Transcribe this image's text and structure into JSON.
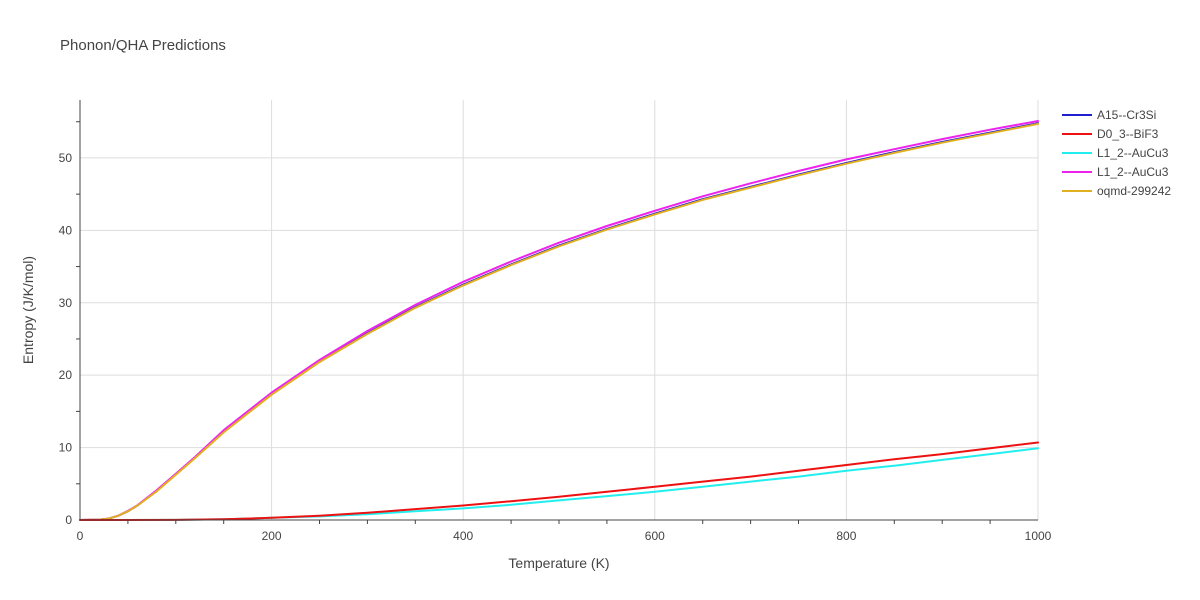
{
  "chart_data": {
    "type": "line",
    "title": "Phonon/QHA Predictions",
    "xlabel": "Temperature (K)",
    "ylabel": "Entropy (J/K/mol)",
    "xlim": [
      0,
      1000
    ],
    "ylim": [
      0,
      58
    ],
    "xticks": [
      0,
      200,
      400,
      600,
      800,
      1000
    ],
    "yticks": [
      0,
      10,
      20,
      30,
      40,
      50
    ],
    "grid": true,
    "legend_position": "right",
    "series": [
      {
        "name": "A15--Cr3Si",
        "color": "#1f1fd0",
        "x": [
          0,
          20,
          30,
          40,
          50,
          60,
          80,
          100,
          120,
          150,
          200,
          250,
          300,
          350,
          400,
          450,
          500,
          550,
          600,
          650,
          700,
          750,
          800,
          850,
          900,
          950,
          1000
        ],
        "y": [
          0,
          0.05,
          0.2,
          0.6,
          1.2,
          2.0,
          4.0,
          6.3,
          8.6,
          12.2,
          17.4,
          21.9,
          25.8,
          29.4,
          32.5,
          35.3,
          37.9,
          40.2,
          42.3,
          44.3,
          46.0,
          47.7,
          49.3,
          50.8,
          52.2,
          53.5,
          54.8
        ]
      },
      {
        "name": "D0_3--BiF3",
        "color": "#ee1111",
        "x": [
          0,
          100,
          150,
          200,
          250,
          300,
          350,
          400,
          450,
          500,
          550,
          600,
          650,
          700,
          750,
          800,
          850,
          900,
          950,
          1000
        ],
        "y": [
          0,
          0.02,
          0.1,
          0.3,
          0.6,
          1.0,
          1.5,
          2.0,
          2.6,
          3.2,
          3.9,
          4.6,
          5.3,
          6.0,
          6.8,
          7.6,
          8.4,
          9.1,
          9.9,
          10.7
        ]
      },
      {
        "name": "L1_2--AuCu3",
        "color": "#22eeee",
        "x": [
          0,
          100,
          150,
          200,
          250,
          300,
          350,
          400,
          450,
          500,
          550,
          600,
          650,
          700,
          750,
          800,
          850,
          900,
          950,
          1000
        ],
        "y": [
          0,
          0.02,
          0.1,
          0.3,
          0.5,
          0.8,
          1.2,
          1.6,
          2.1,
          2.7,
          3.3,
          3.9,
          4.6,
          5.3,
          6.0,
          6.8,
          7.5,
          8.3,
          9.1,
          9.9
        ]
      },
      {
        "name": "L1_2--AuCu3",
        "color": "#ee22ee",
        "x": [
          0,
          20,
          30,
          40,
          50,
          60,
          80,
          100,
          120,
          150,
          200,
          250,
          300,
          350,
          400,
          450,
          500,
          550,
          600,
          650,
          700,
          750,
          800,
          850,
          900,
          950,
          1000
        ],
        "y": [
          0,
          0.05,
          0.2,
          0.6,
          1.25,
          2.05,
          4.1,
          6.4,
          8.7,
          12.4,
          17.6,
          22.1,
          26.1,
          29.7,
          32.9,
          35.7,
          38.3,
          40.6,
          42.7,
          44.7,
          46.5,
          48.2,
          49.8,
          51.2,
          52.6,
          53.9,
          55.1
        ]
      },
      {
        "name": "oqmd-299242",
        "color": "#e0b020",
        "x": [
          0,
          20,
          30,
          40,
          50,
          60,
          80,
          100,
          120,
          150,
          200,
          250,
          300,
          350,
          400,
          450,
          500,
          550,
          600,
          650,
          700,
          750,
          800,
          850,
          900,
          950,
          1000
        ],
        "y": [
          0,
          0.05,
          0.2,
          0.6,
          1.2,
          2.0,
          3.95,
          6.25,
          8.55,
          12.1,
          17.3,
          21.8,
          25.7,
          29.3,
          32.4,
          35.2,
          37.8,
          40.1,
          42.2,
          44.2,
          45.9,
          47.6,
          49.2,
          50.7,
          52.1,
          53.4,
          54.7
        ]
      }
    ]
  }
}
